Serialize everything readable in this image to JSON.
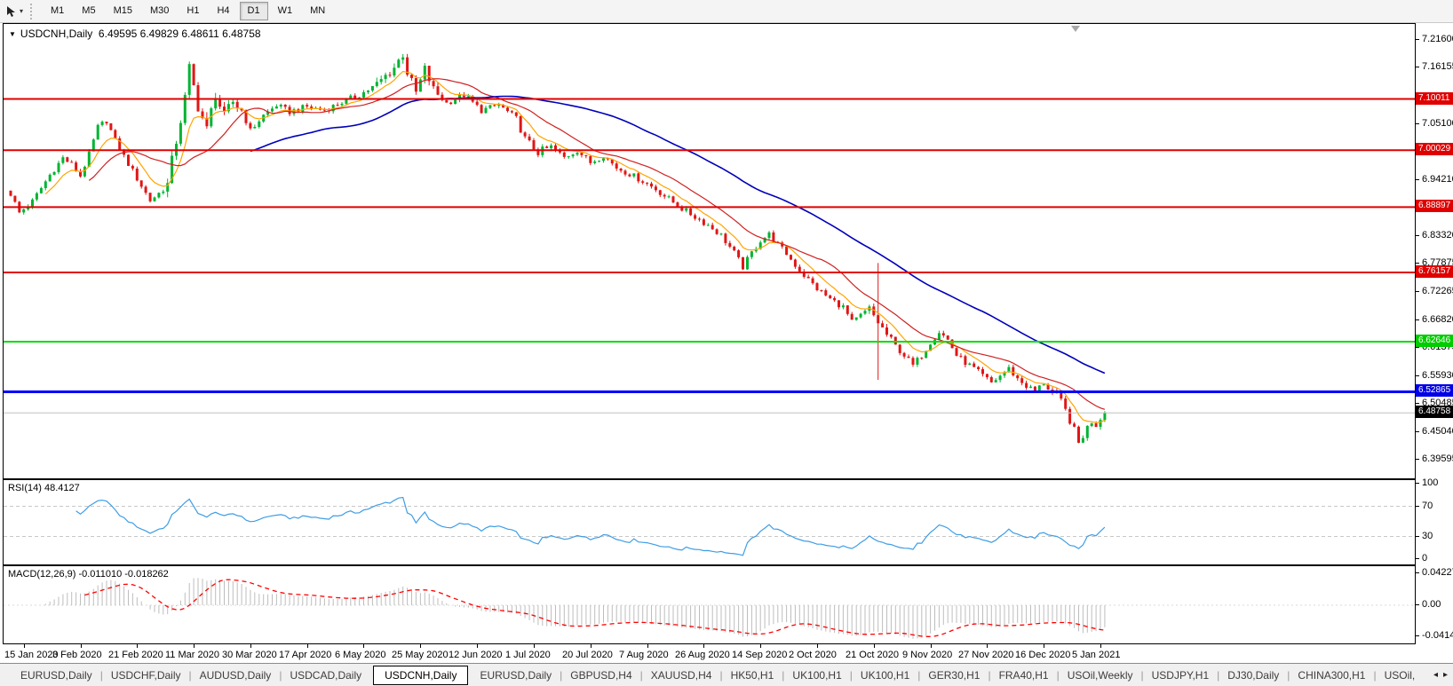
{
  "toolbar": {
    "timeframes": [
      "M1",
      "M5",
      "M15",
      "M30",
      "H1",
      "H4",
      "D1",
      "W1",
      "MN"
    ],
    "active_timeframe": "D1"
  },
  "window": {
    "symbol": "USDCNH",
    "period": "Daily",
    "title_line": "USDCNH,Daily  6.49595 6.49829 6.48611 6.48758"
  },
  "price_axis": {
    "ticks": [
      {
        "v": 7.216,
        "label": "7.21600"
      },
      {
        "v": 7.16155,
        "label": "7.16155"
      },
      {
        "v": 7.051,
        "label": "7.05100"
      },
      {
        "v": 6.9421,
        "label": "6.94210"
      },
      {
        "v": 6.8332,
        "label": "6.83320"
      },
      {
        "v": 6.77875,
        "label": "6.77875"
      },
      {
        "v": 6.72265,
        "label": "6.72265"
      },
      {
        "v": 6.6682,
        "label": "6.66820"
      },
      {
        "v": 6.61375,
        "label": "6.61375"
      },
      {
        "v": 6.5593,
        "label": "6.55930"
      },
      {
        "v": 6.50485,
        "label": "6.50485"
      },
      {
        "v": 6.4504,
        "label": "6.45040"
      },
      {
        "v": 6.39595,
        "label": "6.39595"
      }
    ],
    "badges": [
      {
        "v": 7.10011,
        "label": "7.10011",
        "bg": "#e00000"
      },
      {
        "v": 7.00029,
        "label": "7.00029",
        "bg": "#e00000"
      },
      {
        "v": 6.88897,
        "label": "6.88897",
        "bg": "#e00000"
      },
      {
        "v": 6.76157,
        "label": "6.76157",
        "bg": "#e00000"
      },
      {
        "v": 6.62646,
        "label": "6.62646",
        "bg": "#00cc00"
      },
      {
        "v": 6.52865,
        "label": "6.52865",
        "bg": "#0000e6"
      },
      {
        "v": 6.48758,
        "label": "6.48758",
        "bg": "#000000"
      }
    ]
  },
  "rsi": {
    "label": "RSI(14) 48.4127",
    "value": 48.4127,
    "line_color": "#3e9de5",
    "levels": [
      {
        "v": 100,
        "label": "100",
        "dashed": false
      },
      {
        "v": 70,
        "label": "70",
        "dashed": true
      },
      {
        "v": 30,
        "label": "30",
        "dashed": true
      },
      {
        "v": 0,
        "label": "0",
        "dashed": false
      }
    ]
  },
  "macd": {
    "label": "MACD(12,26,9) -0.011010 -0.018262",
    "main_value": -0.01101,
    "signal_value": -0.018262,
    "bar_color": "#bdbdbd",
    "signal_color": "#ff0000",
    "axis": [
      {
        "v": 0.042275,
        "label": "0.042275"
      },
      {
        "v": 0.0,
        "label": "0.00"
      },
      {
        "v": -0.04148,
        "label": "-0.04148"
      }
    ]
  },
  "dates": [
    "15 Jan 2020",
    "3 Feb 2020",
    "21 Feb 2020",
    "11 Mar 2020",
    "30 Mar 2020",
    "17 Apr 2020",
    "6 May 2020",
    "25 May 2020",
    "12 Jun 2020",
    "1 Jul 2020",
    "20 Jul 2020",
    "7 Aug 2020",
    "26 Aug 2020",
    "14 Sep 2020",
    "2 Oct 2020",
    "21 Oct 2020",
    "9 Nov 2020",
    "27 Nov 2020",
    "16 Dec 2020",
    "5 Jan 2021"
  ],
  "tabs": {
    "items": [
      "EURUSD,Daily",
      "USDCHF,Daily",
      "AUDUSD,Daily",
      "USDCAD,Daily",
      "USDCNH,Daily",
      "EURUSD,Daily",
      "GBPUSD,H4",
      "XAUUSD,H4",
      "HK50,H1",
      "UK100,H1",
      "UK100,H1",
      "GER30,H1",
      "FRA40,H1",
      "USOil,Weekly",
      "USDJPY,H1",
      "DJ30,Daily",
      "CHINA300,H1"
    ],
    "active_index": 4,
    "overflow_label": "USOil,"
  },
  "chart_data": {
    "type": "candlestick",
    "title": "USDCNH Daily",
    "ohlc_display": {
      "open": 6.49595,
      "high": 6.49829,
      "low": 6.48611,
      "close": 6.48758
    },
    "x_axis_dates": [
      "15 Jan 2020",
      "5 Jan 2021"
    ],
    "y_range": [
      6.39595,
      7.2465
    ],
    "bars": 252,
    "up_color": "#00b432",
    "down_color": "#e01616",
    "anchors": [
      [
        0,
        6.915
      ],
      [
        2,
        6.878
      ],
      [
        5,
        6.9
      ],
      [
        9,
        6.952
      ],
      [
        12,
        6.985
      ],
      [
        14,
        6.972
      ],
      [
        16,
        6.95
      ],
      [
        18,
        6.992
      ],
      [
        20,
        7.045
      ],
      [
        22,
        7.058
      ],
      [
        24,
        7.018
      ],
      [
        26,
        6.988
      ],
      [
        29,
        6.945
      ],
      [
        32,
        6.902
      ],
      [
        34,
        6.916
      ],
      [
        36,
        6.932
      ],
      [
        38,
        7.02
      ],
      [
        40,
        7.1
      ],
      [
        41,
        7.158
      ],
      [
        43,
        7.088
      ],
      [
        45,
        7.038
      ],
      [
        47,
        7.112
      ],
      [
        49,
        7.062
      ],
      [
        51,
        7.095
      ],
      [
        53,
        7.078
      ],
      [
        55,
        7.038
      ],
      [
        58,
        7.068
      ],
      [
        61,
        7.088
      ],
      [
        64,
        7.075
      ],
      [
        68,
        7.085
      ],
      [
        72,
        7.078
      ],
      [
        76,
        7.094
      ],
      [
        80,
        7.108
      ],
      [
        84,
        7.128
      ],
      [
        88,
        7.162
      ],
      [
        90,
        7.188
      ],
      [
        91,
        7.152
      ],
      [
        93,
        7.112
      ],
      [
        95,
        7.158
      ],
      [
        97,
        7.118
      ],
      [
        100,
        7.092
      ],
      [
        104,
        7.108
      ],
      [
        108,
        7.078
      ],
      [
        112,
        7.088
      ],
      [
        116,
        7.062
      ],
      [
        118,
        7.022
      ],
      [
        121,
        6.996
      ],
      [
        124,
        7.006
      ],
      [
        127,
        6.986
      ],
      [
        130,
        7.0
      ],
      [
        133,
        6.976
      ],
      [
        136,
        6.99
      ],
      [
        139,
        6.966
      ],
      [
        142,
        6.954
      ],
      [
        145,
        6.94
      ],
      [
        148,
        6.924
      ],
      [
        151,
        6.905
      ],
      [
        154,
        6.886
      ],
      [
        157,
        6.87
      ],
      [
        160,
        6.854
      ],
      [
        163,
        6.834
      ],
      [
        166,
        6.8
      ],
      [
        168,
        6.772
      ],
      [
        170,
        6.8
      ],
      [
        172,
        6.824
      ],
      [
        174,
        6.836
      ],
      [
        176,
        6.816
      ],
      [
        178,
        6.798
      ],
      [
        180,
        6.776
      ],
      [
        182,
        6.756
      ],
      [
        185,
        6.73
      ],
      [
        188,
        6.71
      ],
      [
        191,
        6.694
      ],
      [
        193,
        6.664
      ],
      [
        195,
        6.676
      ],
      [
        197,
        6.69
      ],
      [
        199,
        6.664
      ],
      [
        201,
        6.64
      ],
      [
        203,
        6.618
      ],
      [
        205,
        6.6
      ],
      [
        207,
        6.58
      ],
      [
        209,
        6.6
      ],
      [
        211,
        6.626
      ],
      [
        213,
        6.646
      ],
      [
        215,
        6.63
      ],
      [
        217,
        6.6
      ],
      [
        219,
        6.586
      ],
      [
        221,
        6.574
      ],
      [
        223,
        6.56
      ],
      [
        225,
        6.546
      ],
      [
        227,
        6.56
      ],
      [
        229,
        6.574
      ],
      [
        231,
        6.554
      ],
      [
        233,
        6.54
      ],
      [
        235,
        6.53
      ],
      [
        237,
        6.546
      ],
      [
        239,
        6.528
      ],
      [
        241,
        6.508
      ],
      [
        243,
        6.474
      ],
      [
        244,
        6.452
      ],
      [
        245,
        6.428
      ],
      [
        246,
        6.444
      ],
      [
        247,
        6.458
      ],
      [
        248,
        6.472
      ],
      [
        249,
        6.466
      ],
      [
        250,
        6.478
      ],
      [
        251,
        6.48758
      ]
    ],
    "spike": {
      "day": 199,
      "high": 6.78,
      "low": 6.552
    },
    "volatility_zones": [
      {
        "from": 36,
        "to": 52,
        "f": 2.4
      },
      {
        "from": 84,
        "to": 98,
        "f": 1.7
      },
      {
        "from": 117,
        "to": 125,
        "f": 1.3
      },
      {
        "from": 195,
        "to": 202,
        "f": 1.4
      },
      {
        "from": 238,
        "to": 251,
        "f": 1.5
      }
    ],
    "moving_averages": [
      {
        "name": "MA fast",
        "method": "ema",
        "period": 8,
        "color": "#ffa400",
        "width": 1.2
      },
      {
        "name": "MA mid",
        "method": "sma",
        "period": 18,
        "color": "#d02020",
        "width": 1.2
      },
      {
        "name": "MA slow",
        "method": "sma",
        "period": 55,
        "color": "#0000bb",
        "width": 1.6
      }
    ],
    "hlines": [
      {
        "v": 7.10011,
        "color": "#e00000",
        "w": 2
      },
      {
        "v": 7.00029,
        "color": "#e00000",
        "w": 2
      },
      {
        "v": 6.88897,
        "color": "#e00000",
        "w": 2
      },
      {
        "v": 6.76157,
        "color": "#e00000",
        "w": 2
      },
      {
        "v": 6.62646,
        "color": "#00dd00",
        "w": 2
      },
      {
        "v": 6.52865,
        "color": "#0000ff",
        "w": 3
      },
      {
        "v": 6.48758,
        "color": "#c0c0c0",
        "w": 1
      }
    ],
    "indicators": [
      {
        "name": "RSI",
        "params": [
          14
        ],
        "current": 48.4127
      },
      {
        "name": "MACD",
        "params": [
          12,
          26,
          9
        ],
        "main": -0.01101,
        "signal": -0.018262
      }
    ]
  }
}
